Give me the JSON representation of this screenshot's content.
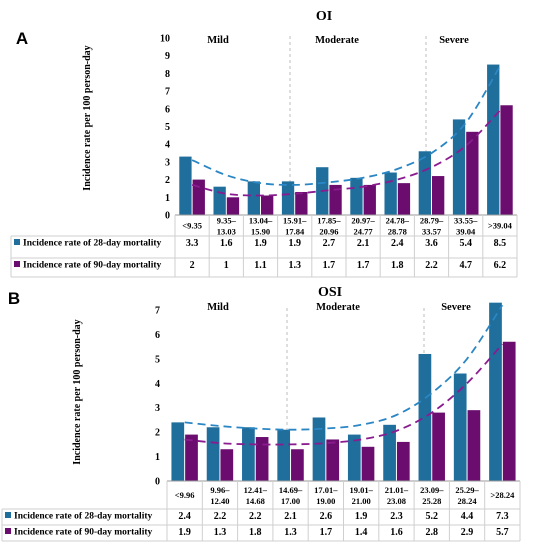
{
  "chart_data": [
    {
      "type": "bar",
      "panel": "A",
      "title": "OI",
      "ylabel": "Incidence rate per 100 person-day",
      "ylim": [
        0,
        10
      ],
      "yticks": [
        0,
        1,
        2,
        3,
        4,
        5,
        6,
        7,
        8,
        9,
        10
      ],
      "bands": [
        "Mild",
        "Moderate",
        "Severe"
      ],
      "categories": [
        "<9.35",
        "9.35–13.03",
        "13.04–15.90",
        "15.91–17.84",
        "17.85–20.96",
        "20.97–24.77",
        "24.78–28.78",
        "28.79–33.57",
        "33.55–39.04",
        ">39.04"
      ],
      "series": [
        {
          "name": "Incidence rate of 28-day mortality",
          "color": "#1f6e9c",
          "values": [
            3.3,
            1.6,
            1.9,
            1.9,
            2.7,
            2.1,
            2.4,
            3.6,
            5.4,
            8.5
          ],
          "trend": [
            3.1,
            2.25,
            1.8,
            1.7,
            1.85,
            2.1,
            2.6,
            3.5,
            5.2,
            8.4
          ]
        },
        {
          "name": "Incidence rate of 90-day mortality",
          "color": "#6a0d6e",
          "values": [
            2,
            1,
            1.1,
            1.3,
            1.7,
            1.7,
            1.8,
            2.2,
            4.7,
            6.2
          ],
          "trend": [
            1.7,
            1.2,
            1.1,
            1.2,
            1.4,
            1.6,
            2.0,
            2.7,
            3.9,
            5.9
          ]
        }
      ]
    },
    {
      "type": "bar",
      "panel": "B",
      "title": "OSI",
      "ylabel": "Incidence rate per 100 person-day",
      "ylim": [
        0,
        7
      ],
      "yticks": [
        0,
        1,
        2,
        3,
        4,
        5,
        6,
        7
      ],
      "bands": [
        "Mild",
        "Moderate",
        "Severe"
      ],
      "categories": [
        "<9.96",
        "9.96–12.40",
        "12.41–14.68",
        "14.69–17.00",
        "17.01–19.00",
        "19.01–21.00",
        "21.01–23.08",
        "23.09–25.28",
        "25.29–28.24",
        ">28.24"
      ],
      "series": [
        {
          "name": "Incidence rate of 28-day mortality",
          "color": "#1f6e9c",
          "values": [
            2.4,
            2.2,
            2.2,
            2.1,
            2.6,
            1.9,
            2.3,
            5.2,
            4.4,
            7.3
          ],
          "trend": [
            2.4,
            2.25,
            2.15,
            2.1,
            2.15,
            2.3,
            2.7,
            3.6,
            5.0,
            7.2
          ]
        },
        {
          "name": "Incidence rate of 90-day mortality",
          "color": "#6a0d6e",
          "values": [
            1.9,
            1.3,
            1.8,
            1.3,
            1.7,
            1.4,
            1.6,
            2.8,
            2.9,
            5.7
          ],
          "trend": [
            1.7,
            1.55,
            1.5,
            1.5,
            1.55,
            1.7,
            2.05,
            2.8,
            4.0,
            5.6
          ]
        }
      ]
    }
  ]
}
